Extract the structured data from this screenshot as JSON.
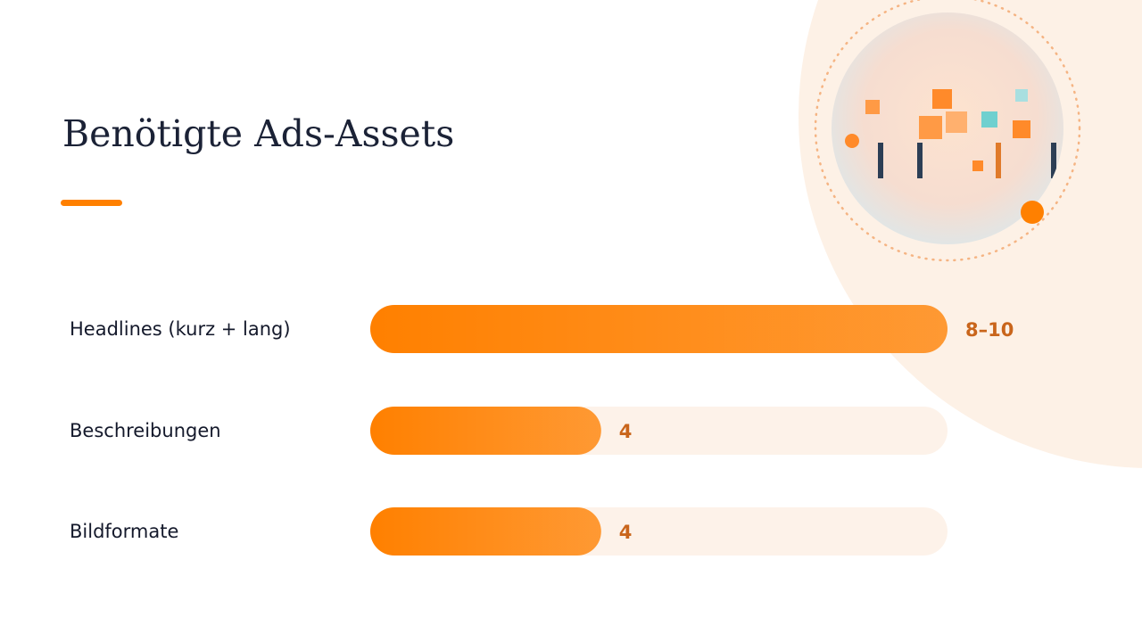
{
  "chart_data": {
    "type": "bar",
    "orientation": "horizontal",
    "title": "Benötigte Ads-Assets",
    "categories": [
      "Headlines (kurz + lang)",
      "Beschreibungen",
      "Bildformate"
    ],
    "values": [
      10,
      4,
      4
    ],
    "value_labels": [
      "8–10",
      "4",
      "4"
    ],
    "xlim": [
      0,
      10
    ],
    "color": "#ff8000"
  }
}
